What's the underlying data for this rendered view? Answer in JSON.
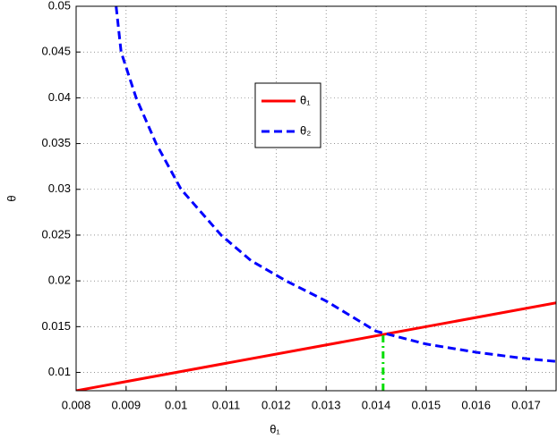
{
  "chart_data": {
    "type": "line",
    "xlabel": "θ₁",
    "ylabel": "θ",
    "xlim": [
      0.008,
      0.0176
    ],
    "ylim": [
      0.008,
      0.05
    ],
    "xticks": [
      0.008,
      0.009,
      0.01,
      0.011,
      0.012,
      0.013,
      0.014,
      0.015,
      0.016,
      0.017
    ],
    "yticks": [
      0.01,
      0.015,
      0.02,
      0.025,
      0.03,
      0.035,
      0.04,
      0.045,
      0.05
    ],
    "grid": true,
    "legend": "upper center",
    "series": [
      {
        "name": "θ₁",
        "color": "#ff0000",
        "dash": "solid",
        "x": [
          0.008,
          0.0176
        ],
        "values": [
          0.008,
          0.0176
        ]
      },
      {
        "name": "θ₂",
        "color": "#0000ff",
        "dash": "dashed",
        "x": [
          0.0088,
          0.0089,
          0.0092,
          0.0096,
          0.0101,
          0.0109,
          0.0115,
          0.0122,
          0.013,
          0.014,
          0.015,
          0.016,
          0.017,
          0.0176
        ],
        "values": [
          0.05,
          0.045,
          0.04,
          0.035,
          0.03,
          0.025,
          0.0222,
          0.02,
          0.0178,
          0.0145,
          0.0131,
          0.0122,
          0.0115,
          0.0112
        ]
      },
      {
        "color": "#00dd00",
        "dash": "dashdot",
        "x": [
          0.01414,
          0.01414
        ],
        "values": [
          0.008,
          0.01414
        ]
      }
    ]
  }
}
